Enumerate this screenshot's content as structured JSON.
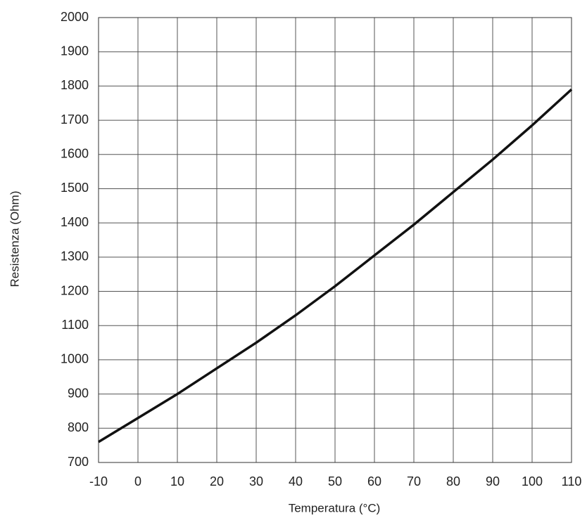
{
  "chart_data": {
    "type": "line",
    "xlabel": "Temperatura (°C)",
    "ylabel": "Resistenza (Ohm)",
    "x": [
      -10,
      0,
      10,
      20,
      30,
      40,
      50,
      60,
      70,
      80,
      90,
      100,
      110
    ],
    "series": [
      {
        "color": "#111111",
        "values": [
          760,
          830,
          900,
          975,
          1050,
          1130,
          1215,
          1305,
          1395,
          1490,
          1585,
          1685,
          1790
        ]
      }
    ],
    "xlim": [
      -10,
      110
    ],
    "xticks": [
      -10,
      0,
      10,
      20,
      30,
      40,
      50,
      60,
      70,
      80,
      90,
      100,
      110
    ],
    "ylim": [
      700,
      2000
    ],
    "yticks": [
      700,
      800,
      900,
      1000,
      1100,
      1200,
      1300,
      1400,
      1500,
      1600,
      1700,
      1800,
      1900,
      2000
    ],
    "grid": true
  }
}
